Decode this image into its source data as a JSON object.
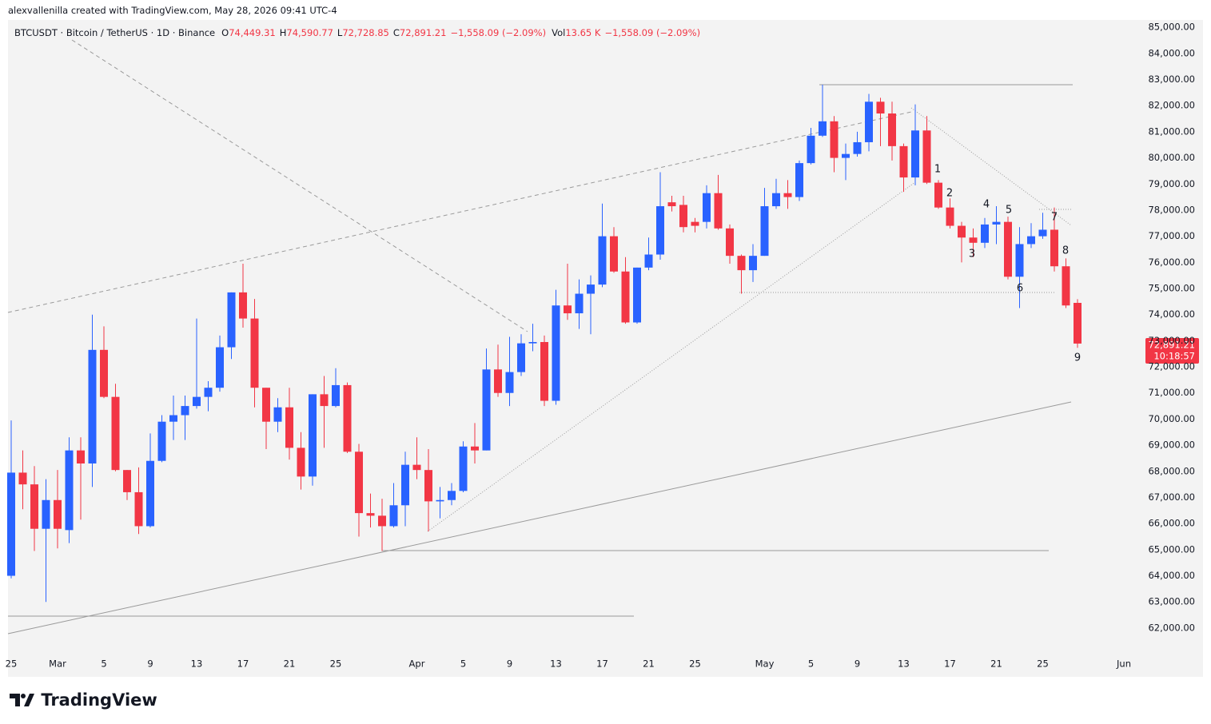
{
  "header": "alexvallenilla created with TradingView.com, May 28, 2026 09:41 UTC-4",
  "legend": {
    "symbol": "BTCUSDT · Bitcoin / TetherUS · 1D · Binance",
    "ohlc": [
      [
        "O",
        "74,449.31"
      ],
      [
        "H",
        "74,590.77"
      ],
      [
        "L",
        "72,728.85"
      ],
      [
        "C",
        "72,891.21"
      ]
    ],
    "change": "−1,558.09 (−2.09%)",
    "volume_label": "Vol",
    "volume": "13.65 K",
    "volume_change": "−1,558.09 (−2.09%)"
  },
  "logo": "TradingView",
  "chart_data": {
    "type": "candlestick",
    "up_color": "#2962ff",
    "down_color": "#f23645",
    "x": [
      "2026-02-25",
      "2026-02-26",
      "2026-02-27",
      "2026-02-28",
      "2026-03-01",
      "2026-03-02",
      "2026-03-03",
      "2026-03-04",
      "2026-03-05",
      "2026-03-06",
      "2026-03-07",
      "2026-03-08",
      "2026-03-09",
      "2026-03-10",
      "2026-03-11",
      "2026-03-12",
      "2026-03-13",
      "2026-03-14",
      "2026-03-15",
      "2026-03-16",
      "2026-03-17",
      "2026-03-18",
      "2026-03-19",
      "2026-03-20",
      "2026-03-21",
      "2026-03-22",
      "2026-03-23",
      "2026-03-24",
      "2026-03-25",
      "2026-03-26",
      "2026-03-27",
      "2026-03-28",
      "2026-03-29",
      "2026-03-30",
      "2026-03-31",
      "2026-04-01",
      "2026-04-02",
      "2026-04-03",
      "2026-04-04",
      "2026-04-05",
      "2026-04-06",
      "2026-04-07",
      "2026-04-08",
      "2026-04-09",
      "2026-04-10",
      "2026-04-11",
      "2026-04-12",
      "2026-04-13",
      "2026-04-14",
      "2026-04-15",
      "2026-04-16",
      "2026-04-17",
      "2026-04-18",
      "2026-04-19",
      "2026-04-20",
      "2026-04-21",
      "2026-04-22",
      "2026-04-23",
      "2026-04-24",
      "2026-04-25",
      "2026-04-26",
      "2026-04-27",
      "2026-04-28",
      "2026-04-29",
      "2026-04-30",
      "2026-05-01",
      "2026-05-02",
      "2026-05-03",
      "2026-05-04",
      "2026-05-05",
      "2026-05-06",
      "2026-05-07",
      "2026-05-08",
      "2026-05-09",
      "2026-05-10",
      "2026-05-11",
      "2026-05-12",
      "2026-05-13",
      "2026-05-14",
      "2026-05-15",
      "2026-05-16",
      "2026-05-17",
      "2026-05-18",
      "2026-05-19",
      "2026-05-20",
      "2026-05-21",
      "2026-05-22",
      "2026-05-23",
      "2026-05-24",
      "2026-05-25",
      "2026-05-26",
      "2026-05-27",
      "2026-05-28"
    ],
    "open": [
      64000,
      67950,
      67500,
      65800,
      66900,
      65750,
      68800,
      68300,
      72650,
      70850,
      68050,
      67200,
      65900,
      68400,
      69900,
      70150,
      70500,
      70850,
      71200,
      72750,
      74850,
      73850,
      71200,
      69900,
      70450,
      68900,
      67800,
      70950,
      70500,
      71300,
      68750,
      66400,
      66300,
      65900,
      66700,
      68250,
      68050,
      66850,
      66900,
      67250,
      68950,
      68800,
      71900,
      71000,
      71800,
      72900,
      72950,
      70700,
      74350,
      74050,
      74800,
      75150,
      77000,
      75650,
      73700,
      75800,
      76300,
      78300,
      78200,
      77550,
      77550,
      78650,
      77300,
      76250,
      75700,
      76250,
      78150,
      78650,
      78500,
      79800,
      80850,
      81400,
      80000,
      80150,
      80600,
      82150,
      81700,
      80450,
      79250,
      81050,
      79050,
      78100,
      77400,
      76950,
      76750,
      77450,
      77550,
      75450,
      76700,
      77000,
      77250,
      75850,
      74449.31
    ],
    "high": [
      69950,
      68800,
      68200,
      67700,
      68050,
      69300,
      69300,
      74000,
      73550,
      71350,
      68050,
      68150,
      69450,
      70150,
      70900,
      70900,
      73850,
      71450,
      73200,
      74850,
      75950,
      74600,
      71200,
      70800,
      71200,
      69500,
      70950,
      71650,
      71950,
      71400,
      69050,
      67150,
      66950,
      67550,
      68750,
      69300,
      68850,
      67400,
      67550,
      69150,
      69850,
      72700,
      72850,
      73150,
      73250,
      73650,
      73200,
      74950,
      75950,
      75350,
      75500,
      78250,
      77350,
      76200,
      75800,
      76950,
      79450,
      78550,
      78550,
      77700,
      78950,
      79350,
      77450,
      76300,
      76700,
      78850,
      79200,
      79150,
      79900,
      81150,
      82800,
      81600,
      80550,
      81000,
      82450,
      82300,
      82150,
      80550,
      82050,
      81600,
      79150,
      78450,
      77550,
      77300,
      77700,
      78150,
      77750,
      77350,
      77500,
      77900,
      78100,
      76150,
      74590.77
    ],
    "low": [
      63900,
      66550,
      64950,
      63000,
      65050,
      65250,
      66150,
      67400,
      70800,
      68000,
      66900,
      65600,
      65850,
      68350,
      69200,
      69200,
      70400,
      70300,
      71050,
      72300,
      73500,
      70450,
      68850,
      69500,
      68450,
      67300,
      67450,
      68900,
      70450,
      68700,
      65500,
      65850,
      64950,
      65850,
      65900,
      67700,
      65700,
      66200,
      66700,
      67200,
      68300,
      68800,
      70850,
      70500,
      71650,
      72600,
      70500,
      70550,
      73800,
      73450,
      73250,
      75050,
      75600,
      73650,
      73650,
      75700,
      76100,
      77950,
      77150,
      77150,
      77300,
      77250,
      75950,
      74800,
      75250,
      76250,
      78050,
      78050,
      78350,
      79750,
      80800,
      79450,
      79150,
      80050,
      80250,
      80450,
      79900,
      78700,
      78950,
      79000,
      78050,
      77300,
      76000,
      76200,
      76550,
      76700,
      75350,
      74250,
      76550,
      76900,
      75650,
      74250,
      72728.85
    ],
    "close": [
      67950,
      67500,
      65800,
      66900,
      65800,
      68800,
      68300,
      72650,
      70850,
      68050,
      67200,
      65900,
      68400,
      69900,
      70150,
      70500,
      70850,
      71200,
      72750,
      74850,
      73850,
      71200,
      69900,
      70450,
      68900,
      67800,
      70950,
      70500,
      71300,
      68750,
      66400,
      66300,
      65900,
      66700,
      68250,
      68050,
      66850,
      66900,
      67250,
      68950,
      68800,
      71900,
      71000,
      71800,
      72900,
      72950,
      70700,
      74350,
      74050,
      74800,
      75150,
      77000,
      75650,
      73700,
      75800,
      76300,
      78150,
      78150,
      77350,
      77400,
      78650,
      77300,
      76250,
      75700,
      76250,
      78150,
      78650,
      78500,
      79800,
      80850,
      81400,
      80000,
      80150,
      80600,
      82150,
      81700,
      80450,
      79250,
      81050,
      79050,
      78100,
      77400,
      76950,
      76750,
      77450,
      77550,
      75450,
      76700,
      77000,
      77250,
      75850,
      74350,
      72891.21
    ],
    "ylim": [
      61110,
      85280
    ],
    "yticks": [
      {
        "value": 62000,
        "label": "62,000.00"
      },
      {
        "value": 63000,
        "label": "63,000.00"
      },
      {
        "value": 64000,
        "label": "64,000.00"
      },
      {
        "value": 65000,
        "label": "65,000.00"
      },
      {
        "value": 66000,
        "label": "66,000.00"
      },
      {
        "value": 67000,
        "label": "67,000.00"
      },
      {
        "value": 68000,
        "label": "68,000.00"
      },
      {
        "value": 69000,
        "label": "69,000.00"
      },
      {
        "value": 70000,
        "label": "70,000.00"
      },
      {
        "value": 71000,
        "label": "71,000.00"
      },
      {
        "value": 72000,
        "label": "72,000.00"
      },
      {
        "value": 73000,
        "label": "73,000.00"
      },
      {
        "value": 74000,
        "label": "74,000.00"
      },
      {
        "value": 75000,
        "label": "75,000.00"
      },
      {
        "value": 76000,
        "label": "76,000.00"
      },
      {
        "value": 77000,
        "label": "77,000.00"
      },
      {
        "value": 78000,
        "label": "78,000.00"
      },
      {
        "value": 79000,
        "label": "79,000.00"
      },
      {
        "value": 80000,
        "label": "80,000.00"
      },
      {
        "value": 81000,
        "label": "81,000.00"
      },
      {
        "value": 82000,
        "label": "82,000.00"
      },
      {
        "value": 83000,
        "label": "83,000.00"
      },
      {
        "value": 84000,
        "label": "84,000.00"
      },
      {
        "value": 85000,
        "label": "85,000.00"
      }
    ],
    "xticks": [
      {
        "value": "2026-02-25",
        "label": "25"
      },
      {
        "value": "2026-03-01",
        "label": "Mar"
      },
      {
        "value": "2026-03-05",
        "label": "5"
      },
      {
        "value": "2026-03-09",
        "label": "9"
      },
      {
        "value": "2026-03-13",
        "label": "13"
      },
      {
        "value": "2026-03-17",
        "label": "17"
      },
      {
        "value": "2026-03-21",
        "label": "21"
      },
      {
        "value": "2026-03-25",
        "label": "25"
      },
      {
        "value": "2026-04-01",
        "label": "Apr"
      },
      {
        "value": "2026-04-05",
        "label": "5"
      },
      {
        "value": "2026-04-09",
        "label": "9"
      },
      {
        "value": "2026-04-13",
        "label": "13"
      },
      {
        "value": "2026-04-17",
        "label": "17"
      },
      {
        "value": "2026-04-21",
        "label": "21"
      },
      {
        "value": "2026-04-25",
        "label": "25"
      },
      {
        "value": "2026-05-01",
        "label": "May"
      },
      {
        "value": "2026-05-05",
        "label": "5"
      },
      {
        "value": "2026-05-09",
        "label": "9"
      },
      {
        "value": "2026-05-13",
        "label": "13"
      },
      {
        "value": "2026-05-17",
        "label": "17"
      },
      {
        "value": "2026-05-21",
        "label": "21"
      },
      {
        "value": "2026-05-25",
        "label": "25"
      },
      {
        "value": "2026-06-01",
        "label": "Jun"
      }
    ],
    "last_price_label": "72,891.21",
    "countdown": "10:18:57",
    "annotations": [
      "1",
      "2",
      "3",
      "4",
      "5",
      "6",
      "7",
      "8",
      "9"
    ]
  }
}
